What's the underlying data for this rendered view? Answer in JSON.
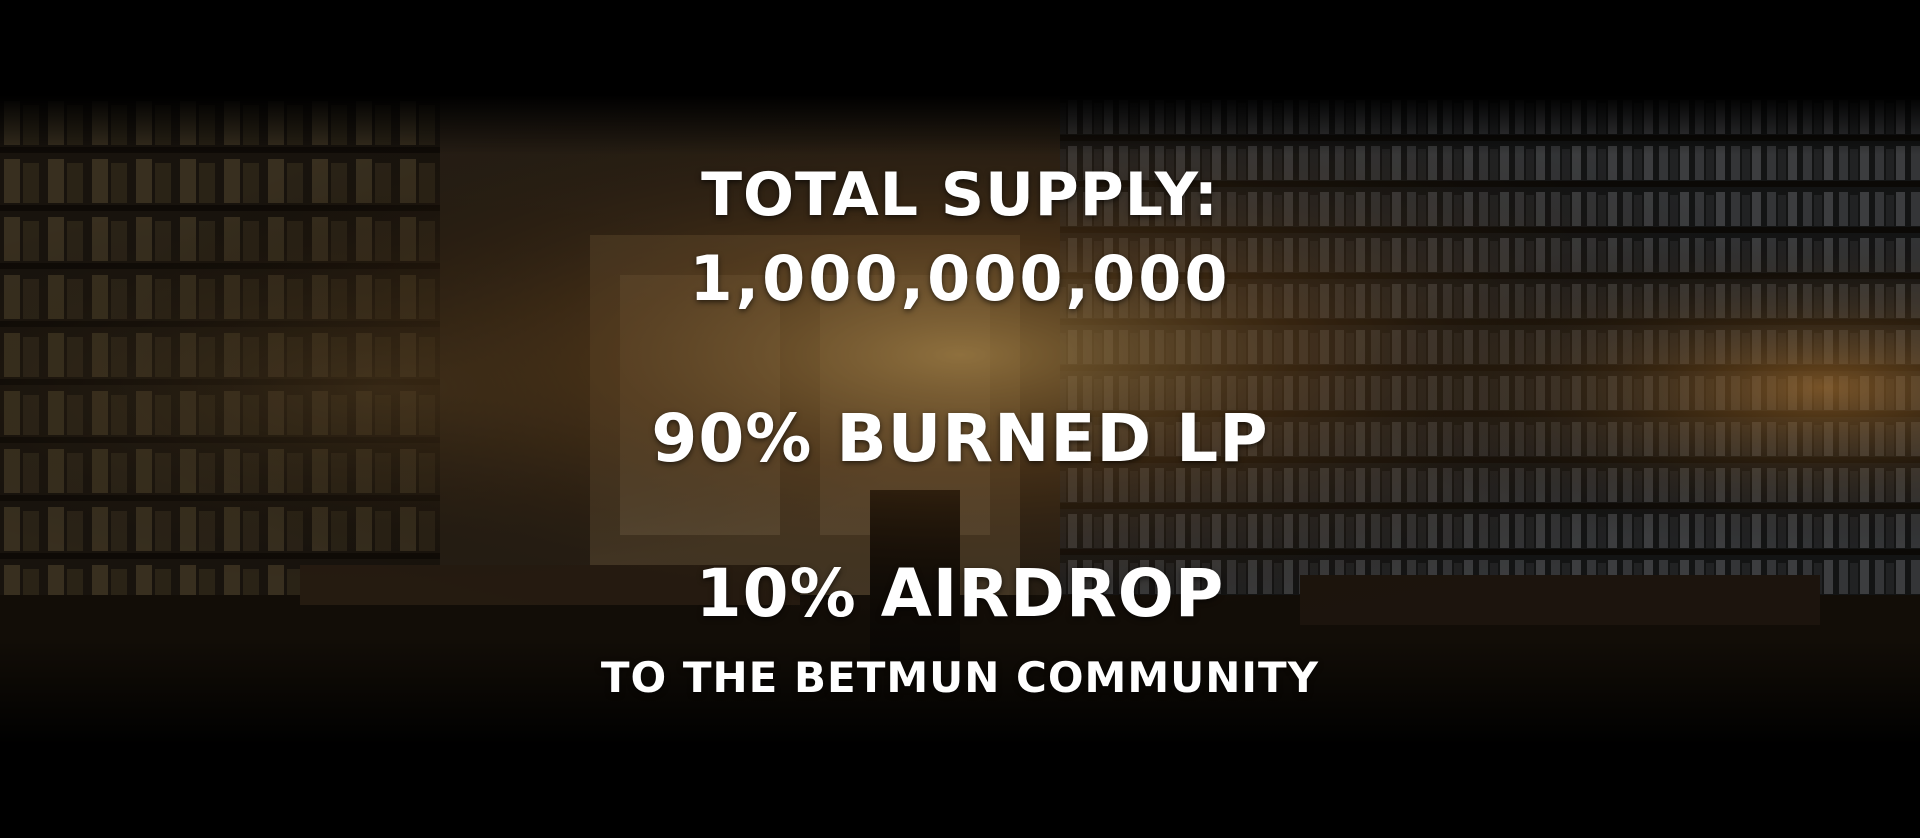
{
  "tokenomics": {
    "supply_label": "TOTAL SUPPLY:",
    "supply_value": "1,000,000,000",
    "burned": "90% BURNED LP",
    "airdrop": "10% AIRDROP",
    "community": "TO THE BETMUN COMMUNITY"
  },
  "colors": {
    "background": "#000000",
    "text": "#ffffff",
    "glow": "#f0a040"
  }
}
